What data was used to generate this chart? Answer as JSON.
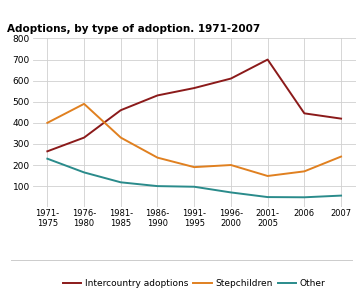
{
  "title": "Adoptions, by type of adoption. 1971-2007",
  "x_labels": [
    "1971-\n1975",
    "1976-\n1980",
    "1981-\n1985",
    "1986-\n1990",
    "1991-\n1995",
    "1996-\n2000",
    "2001-\n2005",
    "2006",
    "2007"
  ],
  "intercountry": [
    265,
    330,
    460,
    530,
    565,
    610,
    700,
    445,
    420
  ],
  "stepchildren": [
    400,
    490,
    330,
    235,
    190,
    200,
    148,
    170,
    240
  ],
  "other": [
    230,
    165,
    118,
    100,
    97,
    70,
    48,
    47,
    55
  ],
  "ylim": [
    0,
    800
  ],
  "yticks": [
    0,
    100,
    200,
    300,
    400,
    500,
    600,
    700,
    800
  ],
  "color_intercountry": "#8B1A1A",
  "color_stepchildren": "#E08020",
  "color_other": "#2A8B8B",
  "legend_labels": [
    "Intercountry adoptions",
    "Stepchildren",
    "Other"
  ],
  "background_color": "#ffffff",
  "grid_color": "#d0d0d0"
}
